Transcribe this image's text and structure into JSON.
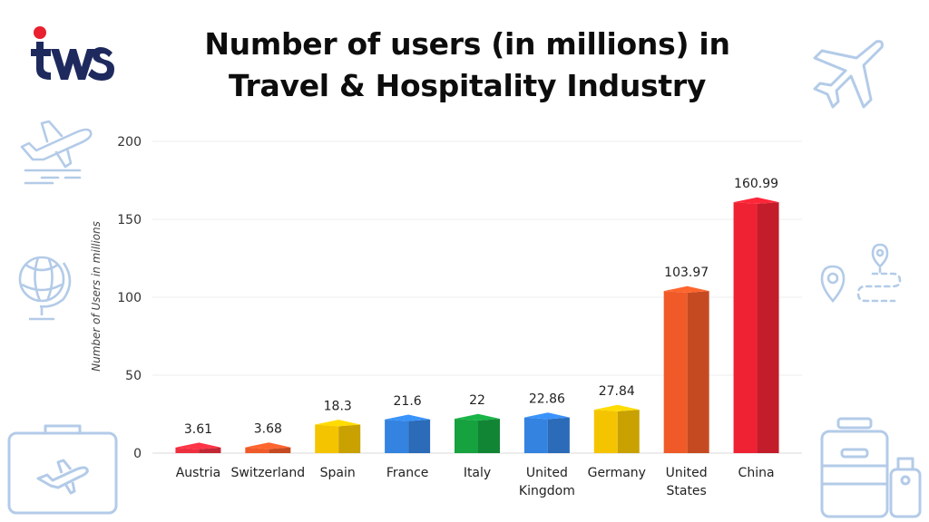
{
  "brand": {
    "logo_text": "tws",
    "colors": {
      "navy": "#1e2a5e",
      "red": "#e8202f",
      "light_blue": "#8fb4e0"
    }
  },
  "title": {
    "line1": "Number of users (in millions) in",
    "line2": "Travel & Hospitality Industry"
  },
  "decorations": [
    "airplane-icon",
    "airplane-takeoff-icon",
    "globe-icon",
    "route-map-icon",
    "suitcase-icon",
    "luggage-icon"
  ],
  "chart_data": {
    "type": "bar",
    "title": "Number of users (in millions) in Travel & Hospitality Industry",
    "ylabel": "Number of Users in millions",
    "xlabel": "",
    "ylim": [
      0,
      200
    ],
    "yticks": [
      0,
      50,
      100,
      150,
      200
    ],
    "grid": true,
    "legend": "none",
    "categories": [
      [
        "Austria"
      ],
      [
        "Switzerland"
      ],
      [
        "Spain"
      ],
      [
        "France"
      ],
      [
        "Italy"
      ],
      [
        "United",
        "Kingdom"
      ],
      [
        "Germany"
      ],
      [
        "United",
        "States"
      ],
      [
        "China"
      ]
    ],
    "values": [
      3.61,
      3.68,
      18.3,
      21.6,
      22,
      22.86,
      27.84,
      103.97,
      160.99
    ],
    "value_labels": [
      "3.61",
      "3.68",
      "18.3",
      "21.6",
      "22",
      "22.86",
      "27.84",
      "103.97",
      "160.99"
    ],
    "colors": [
      "#ee2f3f",
      "#f05a28",
      "#f5c400",
      "#3483e0",
      "#16a23f",
      "#3483e0",
      "#f5c400",
      "#f05a28",
      "#ee2233"
    ]
  }
}
